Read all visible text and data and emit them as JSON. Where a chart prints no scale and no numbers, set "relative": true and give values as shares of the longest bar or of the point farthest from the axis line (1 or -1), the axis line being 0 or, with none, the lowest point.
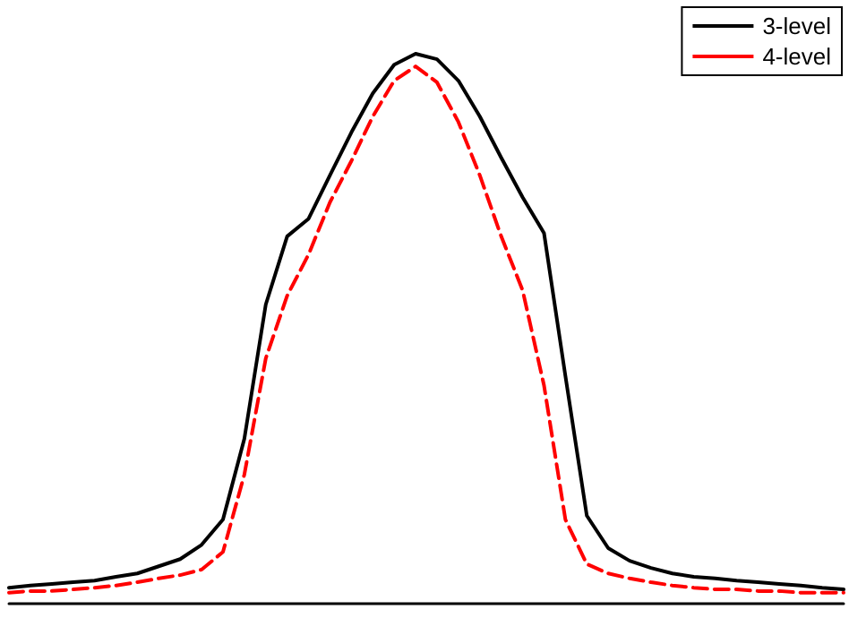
{
  "chart_data": {
    "type": "line",
    "relative": true,
    "legend": "top right",
    "marker": "none",
    "categories": [
      null,
      null,
      null,
      null,
      null,
      null,
      null,
      null,
      null,
      null,
      null,
      null,
      null,
      null,
      null,
      null,
      null,
      null,
      null,
      null,
      null,
      null,
      null,
      null,
      null,
      null,
      null,
      null,
      null,
      null,
      null,
      null,
      null,
      null,
      null,
      null,
      null,
      null,
      null,
      null
    ],
    "series": [
      {
        "name": "3-level",
        "color": "#000000",
        "line_style": "solid",
        "values": [
          0.029,
          0.033,
          0.036,
          0.039,
          0.042,
          0.049,
          0.055,
          0.068,
          0.081,
          0.107,
          0.153,
          0.3,
          0.544,
          0.668,
          0.7,
          0.779,
          0.857,
          0.928,
          0.98,
          1,
          0.99,
          0.951,
          0.886,
          0.811,
          0.739,
          0.674,
          0.414,
          0.16,
          0.101,
          0.078,
          0.065,
          0.055,
          0.049,
          0.046,
          0.042,
          0.039,
          0.036,
          0.033,
          0.029,
          0.026
        ]
      },
      {
        "name": "4-level",
        "color": "#ff0000",
        "line_style": "dashed",
        "values": [
          0.02,
          0.023,
          0.023,
          0.026,
          0.029,
          0.033,
          0.039,
          0.046,
          0.052,
          0.062,
          0.094,
          0.235,
          0.446,
          0.56,
          0.635,
          0.73,
          0.805,
          0.886,
          0.951,
          0.977,
          0.948,
          0.876,
          0.779,
          0.668,
          0.57,
          0.397,
          0.153,
          0.072,
          0.055,
          0.046,
          0.039,
          0.033,
          0.029,
          0.026,
          0.026,
          0.023,
          0.023,
          0.02,
          0.02,
          0.02
        ]
      }
    ]
  }
}
